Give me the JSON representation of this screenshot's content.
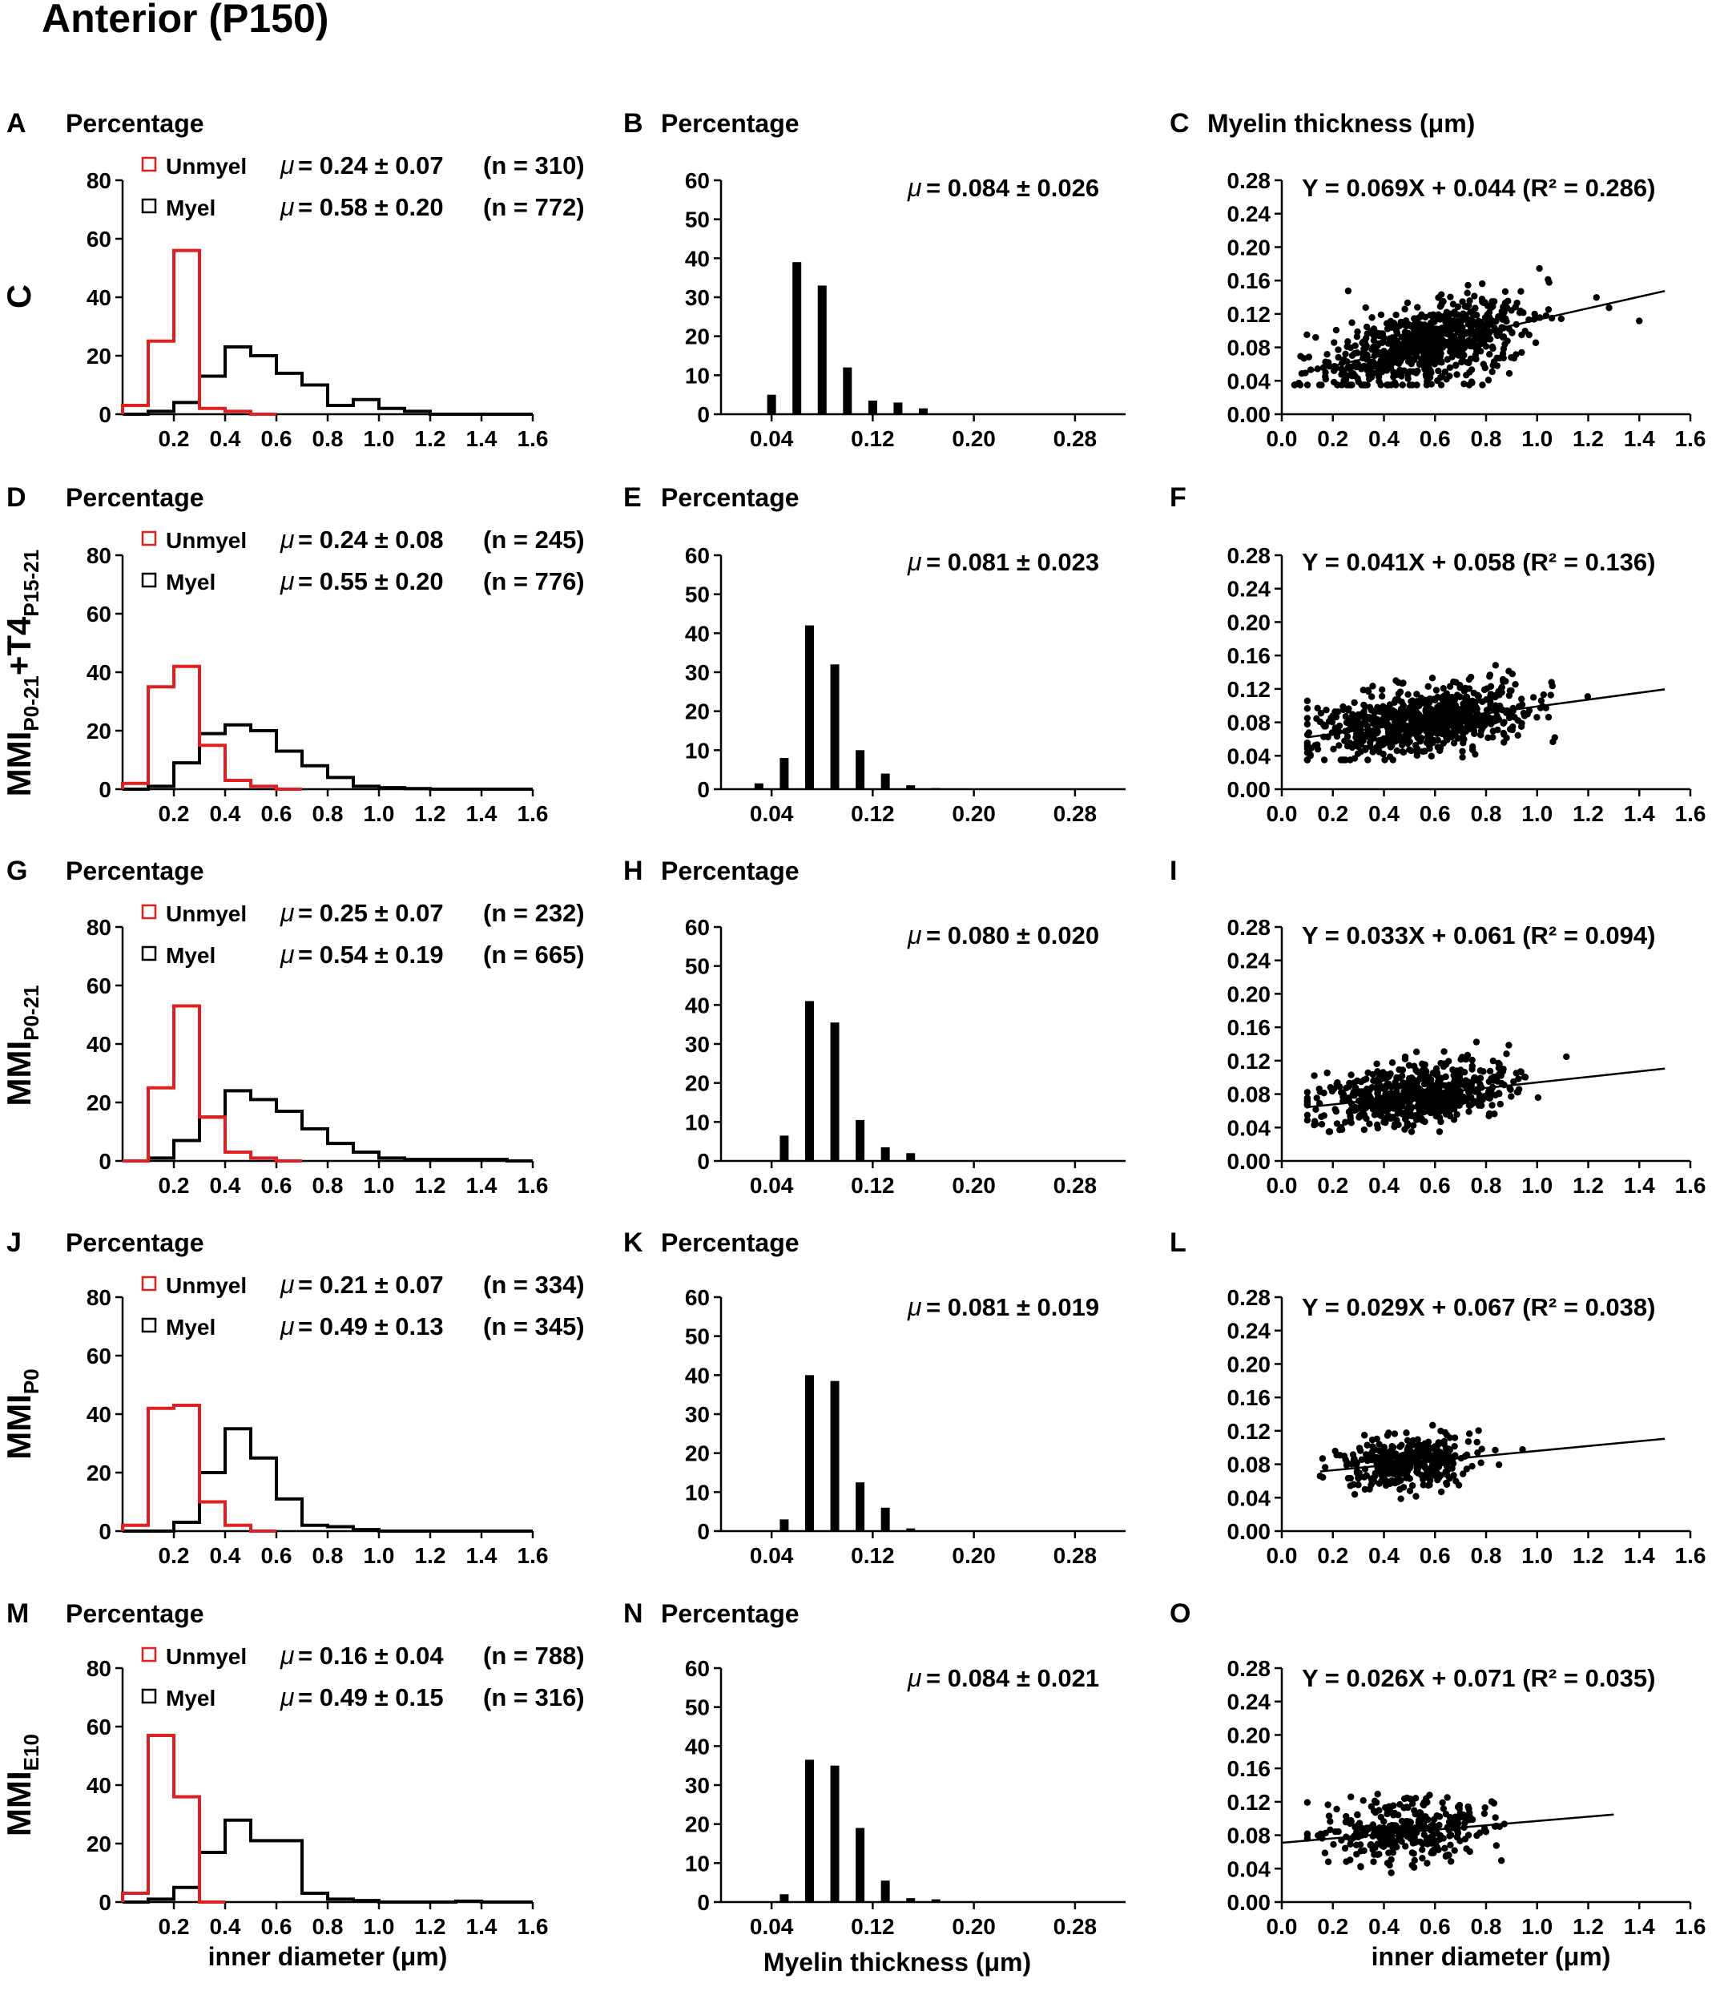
{
  "figure": {
    "title": "Anterior (P150)",
    "col_headers": {
      "hist_diam": "Percentage",
      "hist_myelin": "Percentage",
      "scatter": "Myelin thickness (μm)"
    },
    "bottom_labels": {
      "hist_diam": "inner  diameter (μm)",
      "hist_myelin": "Myelin thickness (μm)",
      "scatter": "inner  diameter (μm)"
    },
    "legend": {
      "unmyel": "Unmyel",
      "myel": "Myel"
    },
    "mu_symbol": "μ"
  },
  "chart_data": [
    {
      "type": "bar",
      "kind": "histogram-step",
      "panel": "A",
      "group": "C",
      "title": "",
      "xlabel": "inner diameter (μm)",
      "ylabel": "Percentage",
      "ylim": [
        0,
        80
      ],
      "yticks": [
        0,
        20,
        40,
        60,
        80
      ],
      "xlim": [
        0,
        1.6
      ],
      "xticks": [
        0.2,
        0.4,
        0.6,
        0.8,
        1.0,
        1.2,
        1.4,
        1.6
      ],
      "bin_width": 0.1,
      "series": [
        {
          "name": "Unmyel",
          "color": "#e02020",
          "stat": "= 0.24 ± 0.07",
          "n": "(n = 310)",
          "values": [
            3,
            25,
            56,
            2,
            1,
            0
          ]
        },
        {
          "name": "Myel",
          "color": "#000000",
          "stat": "= 0.58 ± 0.20",
          "n": "(n = 772)",
          "values": [
            0,
            1,
            4,
            13,
            23,
            20,
            14,
            10,
            3,
            5,
            2,
            1,
            0,
            0,
            0,
            0
          ]
        }
      ]
    },
    {
      "type": "bar",
      "panel": "B",
      "group": "C",
      "xlabel": "Myelin thickness (μm)",
      "ylabel": "Percentage",
      "ylim": [
        0,
        60
      ],
      "yticks": [
        0,
        10,
        20,
        30,
        40,
        50,
        60
      ],
      "xlim": [
        0,
        0.32
      ],
      "xticks": [
        0.04,
        0.12,
        0.2,
        0.28
      ],
      "stat": "= 0.084 ± 0.026",
      "x": [
        0.04,
        0.06,
        0.08,
        0.1,
        0.12,
        0.14,
        0.16
      ],
      "values": [
        5,
        39,
        33,
        12,
        3.5,
        3,
        1.5
      ]
    },
    {
      "type": "scatter",
      "panel": "C",
      "group": "C",
      "xlabel": "inner diameter (μm)",
      "ylabel": "Myelin thickness (μm)",
      "xlim": [
        0,
        1.6
      ],
      "ylim": [
        0,
        0.28
      ],
      "xticks": [
        0.0,
        0.2,
        0.4,
        0.6,
        0.8,
        1.0,
        1.2,
        1.4,
        1.6
      ],
      "yticks": [
        0.0,
        0.04,
        0.08,
        0.12,
        0.16,
        0.2,
        0.24,
        0.28
      ],
      "equation": "Y = 0.069X + 0.044 (R² = 0.286)",
      "slope": 0.069,
      "intercept": 0.044,
      "fit_x": [
        0.1,
        1.5
      ],
      "n": 772,
      "x_mean": 0.58,
      "x_sd": 0.2,
      "y_mean": 0.084,
      "y_sd": 0.026,
      "x_min": 0.05,
      "x_max": 1.4,
      "seed": 11
    },
    {
      "type": "bar",
      "kind": "histogram-step",
      "panel": "D",
      "group": "MMI P0-21 + T4 P15-21",
      "xlabel": "inner diameter (μm)",
      "ylabel": "Percentage",
      "ylim": [
        0,
        80
      ],
      "yticks": [
        0,
        20,
        40,
        60,
        80
      ],
      "xlim": [
        0,
        1.6
      ],
      "xticks": [
        0.2,
        0.4,
        0.6,
        0.8,
        1.0,
        1.2,
        1.4,
        1.6
      ],
      "bin_width": 0.1,
      "series": [
        {
          "name": "Unmyel",
          "color": "#e02020",
          "stat": "= 0.24 ± 0.08",
          "n": "(n = 245)",
          "values": [
            2,
            35,
            42,
            15,
            3,
            1,
            0
          ]
        },
        {
          "name": "Myel",
          "color": "#000000",
          "stat": "= 0.55 ± 0.20",
          "n": "(n = 776)",
          "values": [
            0,
            1,
            9,
            19,
            22,
            20,
            13,
            8,
            4,
            1,
            0.5,
            0.2,
            0,
            0,
            0,
            0
          ]
        }
      ]
    },
    {
      "type": "bar",
      "panel": "E",
      "group": "MMI P0-21 + T4 P15-21",
      "xlabel": "Myelin thickness (μm)",
      "ylabel": "Percentage",
      "ylim": [
        0,
        60
      ],
      "yticks": [
        0,
        10,
        20,
        30,
        40,
        50,
        60
      ],
      "xlim": [
        0,
        0.32
      ],
      "xticks": [
        0.04,
        0.12,
        0.2,
        0.28
      ],
      "stat": "= 0.081 ± 0.023",
      "x": [
        0.03,
        0.05,
        0.07,
        0.09,
        0.11,
        0.13,
        0.15,
        0.17
      ],
      "values": [
        1.5,
        8,
        42,
        32,
        10,
        4,
        1,
        0.3
      ]
    },
    {
      "type": "scatter",
      "panel": "F",
      "group": "MMI P0-21 + T4 P15-21",
      "xlabel": "inner diameter (μm)",
      "ylabel": "Myelin thickness (μm)",
      "xlim": [
        0,
        1.6
      ],
      "ylim": [
        0,
        0.28
      ],
      "xticks": [
        0.0,
        0.2,
        0.4,
        0.6,
        0.8,
        1.0,
        1.2,
        1.4,
        1.6
      ],
      "yticks": [
        0.0,
        0.04,
        0.08,
        0.12,
        0.16,
        0.2,
        0.24,
        0.28
      ],
      "equation": "Y = 0.041X + 0.058 (R² = 0.136)",
      "slope": 0.041,
      "intercept": 0.058,
      "fit_x": [
        0.1,
        1.5
      ],
      "n": 776,
      "x_mean": 0.55,
      "x_sd": 0.2,
      "y_mean": 0.081,
      "y_sd": 0.023,
      "x_min": 0.1,
      "x_max": 1.5,
      "seed": 23
    },
    {
      "type": "bar",
      "kind": "histogram-step",
      "panel": "G",
      "group": "MMI P0-21",
      "xlabel": "inner diameter (μm)",
      "ylabel": "Percentage",
      "ylim": [
        0,
        80
      ],
      "yticks": [
        0,
        20,
        40,
        60,
        80
      ],
      "xlim": [
        0,
        1.6
      ],
      "xticks": [
        0.2,
        0.4,
        0.6,
        0.8,
        1.0,
        1.2,
        1.4,
        1.6
      ],
      "bin_width": 0.1,
      "series": [
        {
          "name": "Unmyel",
          "color": "#e02020",
          "stat": "= 0.25 ± 0.07",
          "n": "(n = 232)",
          "values": [
            0,
            25,
            53,
            15,
            3,
            1,
            0
          ]
        },
        {
          "name": "Myel",
          "color": "#000000",
          "stat": "= 0.54 ± 0.19",
          "n": "(n = 665)",
          "values": [
            0,
            1,
            7,
            15,
            24,
            21,
            17,
            11,
            6,
            3,
            1,
            0.5,
            0.5,
            0.5,
            0.5,
            0
          ]
        }
      ]
    },
    {
      "type": "bar",
      "panel": "H",
      "group": "MMI P0-21",
      "xlabel": "Myelin thickness (μm)",
      "ylabel": "Percentage",
      "ylim": [
        0,
        60
      ],
      "yticks": [
        0,
        10,
        20,
        30,
        40,
        50,
        60
      ],
      "xlim": [
        0,
        0.32
      ],
      "xticks": [
        0.04,
        0.12,
        0.2,
        0.28
      ],
      "stat": "= 0.080 ± 0.020",
      "x": [
        0.05,
        0.07,
        0.09,
        0.11,
        0.13,
        0.15
      ],
      "values": [
        6.5,
        41,
        35.5,
        10.5,
        3.5,
        2
      ]
    },
    {
      "type": "scatter",
      "panel": "I",
      "group": "MMI P0-21",
      "xlabel": "inner diameter (μm)",
      "ylabel": "Myelin thickness (μm)",
      "xlim": [
        0,
        1.6
      ],
      "ylim": [
        0,
        0.28
      ],
      "xticks": [
        0.0,
        0.2,
        0.4,
        0.6,
        0.8,
        1.0,
        1.2,
        1.4,
        1.6
      ],
      "yticks": [
        0.0,
        0.04,
        0.08,
        0.12,
        0.16,
        0.2,
        0.24,
        0.28
      ],
      "equation": "Y = 0.033X + 0.061 (R² = 0.094)",
      "slope": 0.033,
      "intercept": 0.061,
      "fit_x": [
        0.1,
        1.5
      ],
      "n": 665,
      "x_mean": 0.54,
      "x_sd": 0.19,
      "y_mean": 0.08,
      "y_sd": 0.02,
      "x_min": 0.1,
      "x_max": 1.5,
      "seed": 37
    },
    {
      "type": "bar",
      "kind": "histogram-step",
      "panel": "J",
      "group": "MMI P0",
      "xlabel": "inner diameter (μm)",
      "ylabel": "Percentage",
      "ylim": [
        0,
        80
      ],
      "yticks": [
        0,
        20,
        40,
        60,
        80
      ],
      "xlim": [
        0,
        1.6
      ],
      "xticks": [
        0.2,
        0.4,
        0.6,
        0.8,
        1.0,
        1.2,
        1.4,
        1.6
      ],
      "bin_width": 0.1,
      "series": [
        {
          "name": "Unmyel",
          "color": "#e02020",
          "stat": "= 0.21 ± 0.07",
          "n": "(n = 334)",
          "values": [
            2,
            42,
            43,
            10,
            2,
            0
          ]
        },
        {
          "name": "Myel",
          "color": "#000000",
          "stat": "= 0.49 ± 0.13",
          "n": "(n = 345)",
          "values": [
            0,
            0,
            3,
            20,
            35,
            25,
            11,
            2,
            1.5,
            0.5,
            0,
            0,
            0,
            0,
            0,
            0
          ]
        }
      ]
    },
    {
      "type": "bar",
      "panel": "K",
      "group": "MMI P0",
      "xlabel": "Myelin thickness (μm)",
      "ylabel": "Percentage",
      "ylim": [
        0,
        60
      ],
      "yticks": [
        0,
        10,
        20,
        30,
        40,
        50,
        60
      ],
      "xlim": [
        0,
        0.32
      ],
      "xticks": [
        0.04,
        0.12,
        0.2,
        0.28
      ],
      "stat": "= 0.081 ± 0.019",
      "x": [
        0.05,
        0.07,
        0.09,
        0.11,
        0.13,
        0.15
      ],
      "values": [
        3,
        40,
        38.5,
        12.5,
        6,
        0.7
      ]
    },
    {
      "type": "scatter",
      "panel": "L",
      "group": "MMI P0",
      "xlabel": "inner diameter (μm)",
      "ylabel": "Myelin thickness (μm)",
      "xlim": [
        0,
        1.6
      ],
      "ylim": [
        0,
        0.28
      ],
      "xticks": [
        0.0,
        0.2,
        0.4,
        0.6,
        0.8,
        1.0,
        1.2,
        1.4,
        1.6
      ],
      "yticks": [
        0.0,
        0.04,
        0.08,
        0.12,
        0.16,
        0.2,
        0.24,
        0.28
      ],
      "equation": "Y = 0.029X + 0.067 (R² = 0.038)",
      "slope": 0.029,
      "intercept": 0.067,
      "fit_x": [
        0.15,
        1.5
      ],
      "n": 345,
      "x_mean": 0.49,
      "x_sd": 0.13,
      "y_mean": 0.081,
      "y_sd": 0.019,
      "x_min": 0.15,
      "x_max": 1.05,
      "seed": 51
    },
    {
      "type": "bar",
      "kind": "histogram-step",
      "panel": "M",
      "group": "MMI E10",
      "xlabel": "inner diameter (μm)",
      "ylabel": "Percentage",
      "ylim": [
        0,
        80
      ],
      "yticks": [
        0,
        20,
        40,
        60,
        80
      ],
      "xlim": [
        0,
        1.6
      ],
      "xticks": [
        0.2,
        0.4,
        0.6,
        0.8,
        1.0,
        1.2,
        1.4,
        1.6
      ],
      "bin_width": 0.1,
      "series": [
        {
          "name": "Unmyel",
          "color": "#e02020",
          "stat": "= 0.16 ± 0.04",
          "n": "(n = 788)",
          "values": [
            3,
            57,
            36,
            0
          ]
        },
        {
          "name": "Myel",
          "color": "#000000",
          "stat": "= 0.49 ± 0.15",
          "n": "(n = 316)",
          "values": [
            0,
            1,
            5,
            17,
            28,
            21,
            21,
            3,
            1,
            0.5,
            0,
            0,
            0,
            0.3,
            0,
            0
          ]
        }
      ]
    },
    {
      "type": "bar",
      "panel": "N",
      "group": "MMI E10",
      "xlabel": "Myelin thickness (μm)",
      "ylabel": "Percentage",
      "ylim": [
        0,
        60
      ],
      "yticks": [
        0,
        10,
        20,
        30,
        40,
        50,
        60
      ],
      "xlim": [
        0,
        0.32
      ],
      "xticks": [
        0.04,
        0.12,
        0.2,
        0.28
      ],
      "stat": "= 0.084 ± 0.021",
      "x": [
        0.05,
        0.07,
        0.09,
        0.11,
        0.13,
        0.15,
        0.17
      ],
      "values": [
        2,
        36.5,
        35,
        19,
        5.5,
        1,
        0.7
      ]
    },
    {
      "type": "scatter",
      "panel": "O",
      "group": "MMI E10",
      "xlabel": "inner diameter (μm)",
      "ylabel": "Myelin thickness (μm)",
      "xlim": [
        0,
        1.6
      ],
      "ylim": [
        0,
        0.28
      ],
      "xticks": [
        0.0,
        0.2,
        0.4,
        0.6,
        0.8,
        1.0,
        1.2,
        1.4,
        1.6
      ],
      "yticks": [
        0.0,
        0.04,
        0.08,
        0.12,
        0.16,
        0.2,
        0.24,
        0.28
      ],
      "equation": "Y = 0.026X + 0.071 (R² = 0.035)",
      "slope": 0.026,
      "intercept": 0.071,
      "fit_x": [
        0.0,
        1.3
      ],
      "n": 316,
      "x_mean": 0.49,
      "x_sd": 0.15,
      "y_mean": 0.084,
      "y_sd": 0.021,
      "x_min": 0.1,
      "x_max": 1.3,
      "seed": 67
    }
  ]
}
